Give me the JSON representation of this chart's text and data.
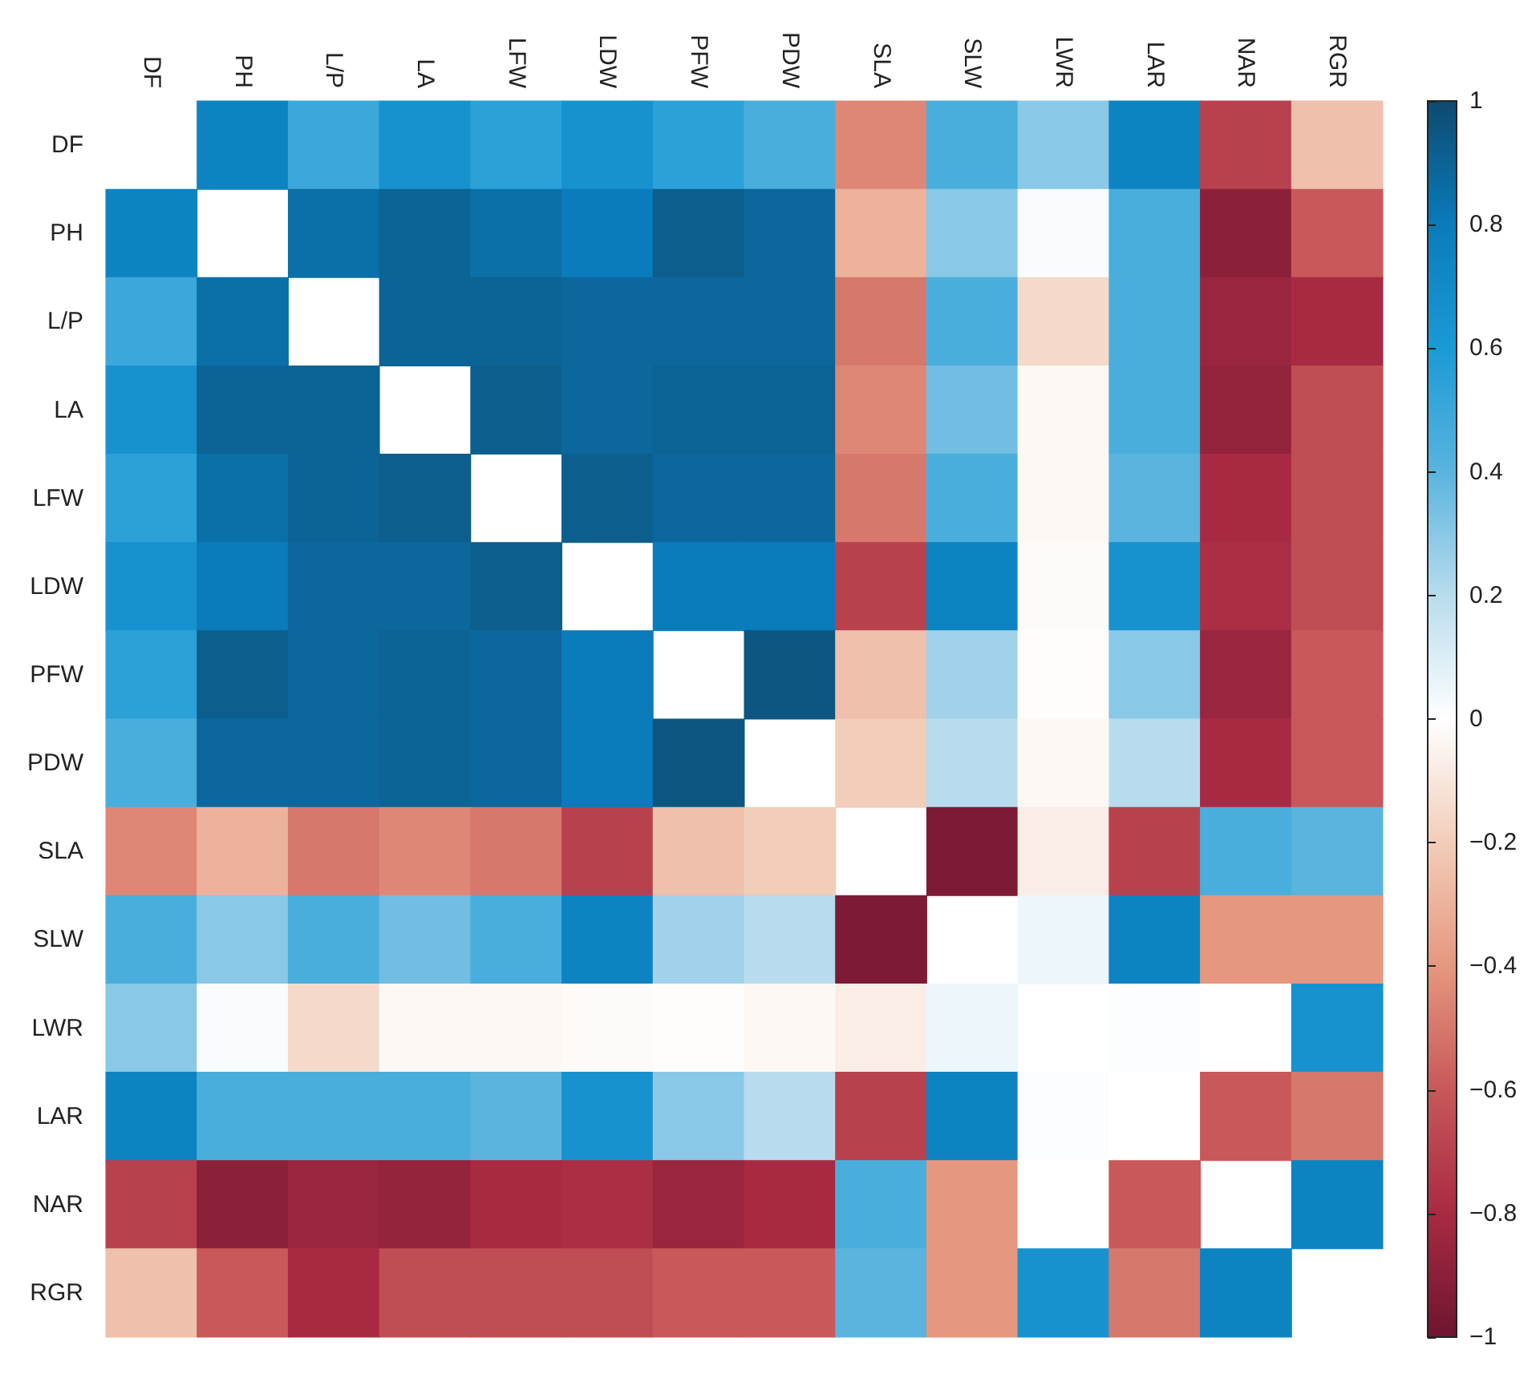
{
  "chart_data": {
    "type": "heatmap",
    "categories": [
      "DF",
      "PH",
      "L/P",
      "LA",
      "LFW",
      "LDW",
      "PFW",
      "PDW",
      "SLA",
      "SLW",
      "LWR",
      "LAR",
      "NAR",
      "RGR"
    ],
    "y_categories": [
      "DF",
      "PH",
      "L/P",
      "LA",
      "LFW",
      "LDW",
      "PFW",
      "PDW",
      "SLA",
      "SLW",
      "LWR",
      "LAR",
      "NAR",
      "RGR"
    ],
    "cells": [
      [
        null,
        0.75,
        0.5,
        0.65,
        0.55,
        0.65,
        0.55,
        0.45,
        -0.45,
        0.45,
        0.3,
        0.75,
        -0.7,
        -0.25
      ],
      [
        0.75,
        null,
        0.85,
        0.9,
        0.85,
        0.8,
        0.92,
        0.88,
        -0.3,
        0.3,
        0.02,
        0.45,
        -0.9,
        -0.6
      ],
      [
        0.5,
        0.85,
        null,
        0.9,
        0.9,
        0.88,
        0.88,
        0.88,
        -0.5,
        0.45,
        -0.15,
        0.45,
        -0.85,
        -0.8
      ],
      [
        0.65,
        0.9,
        0.9,
        null,
        0.92,
        0.88,
        0.9,
        0.9,
        -0.45,
        0.35,
        -0.03,
        0.45,
        -0.87,
        -0.65
      ],
      [
        0.55,
        0.85,
        0.9,
        0.92,
        null,
        0.92,
        0.88,
        0.88,
        -0.5,
        0.45,
        -0.03,
        0.4,
        -0.8,
        -0.65
      ],
      [
        0.65,
        0.8,
        0.88,
        0.88,
        0.92,
        null,
        0.8,
        0.8,
        -0.7,
        0.75,
        -0.02,
        0.65,
        -0.78,
        -0.65
      ],
      [
        0.55,
        0.92,
        0.88,
        0.9,
        0.88,
        0.8,
        null,
        0.95,
        -0.25,
        0.25,
        -0.01,
        0.3,
        -0.85,
        -0.6
      ],
      [
        0.45,
        0.88,
        0.88,
        0.9,
        0.88,
        0.8,
        0.95,
        null,
        -0.2,
        0.2,
        -0.03,
        0.2,
        -0.8,
        -0.6
      ],
      [
        -0.45,
        -0.3,
        -0.5,
        -0.45,
        -0.5,
        -0.7,
        -0.25,
        -0.2,
        null,
        -0.95,
        -0.07,
        -0.7,
        0.45,
        0.4
      ],
      [
        0.45,
        0.3,
        0.45,
        0.35,
        0.45,
        0.75,
        0.25,
        0.2,
        -0.95,
        null,
        0.05,
        0.75,
        -0.4,
        -0.4
      ],
      [
        0.3,
        0.02,
        -0.15,
        -0.03,
        -0.03,
        -0.02,
        -0.01,
        -0.03,
        -0.07,
        0.05,
        null,
        0.01,
        0.0,
        0.65
      ],
      [
        0.75,
        0.45,
        0.45,
        0.45,
        0.4,
        0.65,
        0.3,
        0.2,
        -0.7,
        0.75,
        0.01,
        null,
        -0.6,
        -0.5
      ],
      [
        -0.7,
        -0.9,
        -0.85,
        -0.87,
        -0.8,
        -0.78,
        -0.85,
        -0.8,
        0.45,
        -0.4,
        0.0,
        -0.6,
        null,
        0.75
      ],
      [
        -0.25,
        -0.6,
        -0.8,
        -0.65,
        -0.65,
        -0.65,
        -0.6,
        -0.6,
        0.4,
        -0.4,
        0.65,
        -0.5,
        0.75,
        null
      ]
    ],
    "clim": [
      -1,
      1
    ],
    "cticks": [
      -1,
      -0.8,
      -0.6,
      -0.4,
      -0.2,
      0,
      0.2,
      0.4,
      0.6,
      0.8,
      1
    ]
  }
}
